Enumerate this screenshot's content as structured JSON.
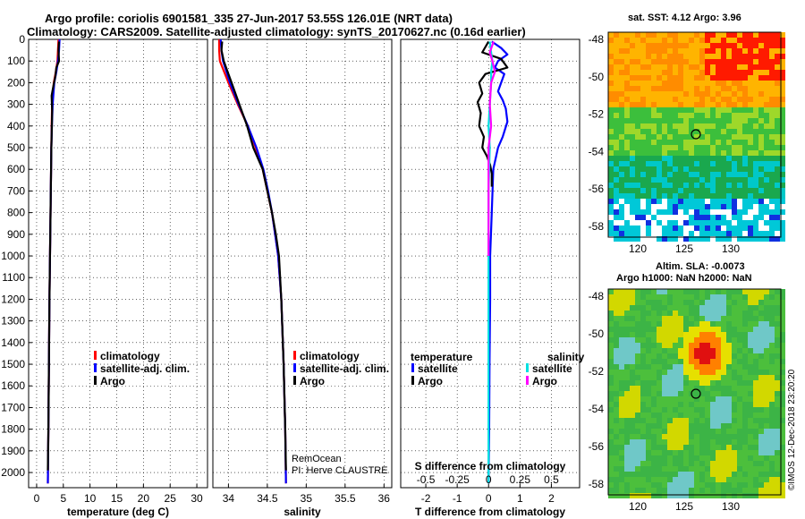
{
  "header": {
    "title_line1": "Argo profile: coriolis 6901581_335 27-Jun-2017 53.55S 126.01E (NRT data)",
    "title_line2": "Climatology: CARS2009. Satellite-adjusted climatology: synTS_20170627.nc (0.16d earlier)"
  },
  "colors": {
    "climatology": "#ff0000",
    "satellite_adj": "#0000ff",
    "argo": "#000000",
    "satellite_salinity": "#00e0e0",
    "argo_salinity": "#ff00ff"
  },
  "chart_data": [
    {
      "type": "line",
      "id": "temperature",
      "xlabel": "temperature (deg C)",
      "ylabel": "",
      "xlim": [
        -1.5,
        32
      ],
      "ylim": [
        2070,
        0
      ],
      "xticks": [
        0,
        5,
        10,
        15,
        20,
        25,
        30
      ],
      "yticks": [
        0,
        100,
        200,
        300,
        400,
        500,
        600,
        700,
        800,
        900,
        1000,
        1100,
        1200,
        1300,
        1400,
        1500,
        1600,
        1700,
        1800,
        1900,
        2000
      ],
      "legend": [
        "climatology",
        "satellite-adj. clim.",
        "Argo"
      ],
      "series": [
        {
          "name": "climatology",
          "color": "#ff0000",
          "depth": [
            0,
            50,
            100,
            150,
            200,
            300,
            400,
            500,
            600,
            800,
            1000,
            1200,
            1500,
            1800,
            2050
          ],
          "values": [
            4.1,
            4.0,
            3.9,
            3.6,
            3.2,
            2.9,
            2.8,
            2.75,
            2.7,
            2.6,
            2.5,
            2.4,
            2.3,
            2.2,
            2.1
          ]
        },
        {
          "name": "satellite-adj. clim.",
          "color": "#0000ff",
          "depth": [
            0,
            50,
            100,
            150,
            200,
            300,
            400,
            500,
            600,
            800,
            1000,
            1200,
            1500,
            1800,
            2050
          ],
          "values": [
            4.3,
            4.2,
            4.0,
            3.7,
            3.3,
            3.0,
            2.85,
            2.75,
            2.7,
            2.6,
            2.5,
            2.4,
            2.3,
            2.2,
            2.1
          ]
        },
        {
          "name": "Argo",
          "color": "#000000",
          "depth": [
            10,
            50,
            100,
            130,
            170,
            220,
            260,
            330,
            400,
            500,
            600,
            800,
            1000,
            1200,
            1500,
            1800,
            1990
          ],
          "values": [
            4.2,
            4.1,
            4.2,
            3.7,
            3.5,
            3.1,
            2.8,
            2.9,
            2.85,
            2.75,
            2.7,
            2.6,
            2.5,
            2.4,
            2.3,
            2.2,
            2.1
          ]
        }
      ]
    },
    {
      "type": "line",
      "id": "salinity",
      "xlabel": "salinity",
      "ylabel": "",
      "xlim": [
        33.8,
        36.1
      ],
      "ylim": [
        2070,
        0
      ],
      "xticks": [
        34,
        34.5,
        35,
        35.5,
        36
      ],
      "xticklabels": [
        "34",
        "34.5",
        "35",
        "35.5",
        "36"
      ],
      "legend": [
        "climatology",
        "satellite-adj. clim.",
        "Argo"
      ],
      "credit": [
        "RemOcean",
        "PI: Herve CLAUSTRE"
      ],
      "series": [
        {
          "name": "climatology",
          "color": "#ff0000",
          "depth": [
            0,
            50,
            100,
            200,
            300,
            400,
            500,
            600,
            700,
            800,
            900,
            1000,
            1200,
            1500,
            1800,
            2050
          ],
          "values": [
            33.88,
            33.88,
            33.89,
            34.0,
            34.12,
            34.25,
            34.35,
            34.44,
            34.5,
            34.56,
            34.6,
            34.64,
            34.68,
            34.71,
            34.73,
            34.74
          ]
        },
        {
          "name": "satellite-adj. clim.",
          "color": "#0000ff",
          "depth": [
            0,
            50,
            100,
            200,
            300,
            400,
            500,
            600,
            700,
            800,
            900,
            1000,
            1200,
            1500,
            1800,
            2050
          ],
          "values": [
            33.9,
            33.91,
            33.93,
            34.02,
            34.13,
            34.25,
            34.36,
            34.45,
            34.51,
            34.56,
            34.6,
            34.64,
            34.68,
            34.71,
            34.73,
            34.74
          ]
        },
        {
          "name": "Argo",
          "color": "#000000",
          "depth": [
            10,
            50,
            100,
            150,
            200,
            300,
            400,
            500,
            600,
            700,
            800,
            900,
            1000,
            1200,
            1500,
            1800,
            1990
          ],
          "values": [
            33.92,
            33.91,
            33.94,
            33.99,
            34.04,
            34.14,
            34.24,
            34.32,
            34.44,
            34.5,
            34.56,
            34.61,
            34.65,
            34.68,
            34.71,
            34.73,
            34.74
          ]
        }
      ]
    },
    {
      "type": "line",
      "id": "difference",
      "xlabel": "T difference from climatology",
      "xlabel2": "S difference from climatology",
      "xlim": [
        -2.8,
        2.9
      ],
      "ylim": [
        2070,
        0
      ],
      "xticks": [
        -2,
        -1,
        0,
        1,
        2
      ],
      "s_ticks": [
        -0.5,
        -0.25,
        0,
        0.25,
        0.5
      ],
      "s_ticklabels": [
        "-0.5",
        "-0.25",
        "0",
        "0.25",
        "0.5"
      ],
      "legend_temperature_title": "temperature",
      "legend_salinity_title": "salinity",
      "legend_temperature": [
        "satellite",
        "Argo"
      ],
      "legend_salinity": [
        "satellite",
        "Argo"
      ],
      "series": [
        {
          "name": "T satellite",
          "color": "#0000ff",
          "depth": [
            10,
            40,
            70,
            100,
            130,
            160,
            200,
            240,
            280,
            320,
            380,
            450,
            500,
            600,
            800,
            1000,
            1200,
            1500,
            1800,
            2050
          ],
          "values": [
            0.1,
            0.4,
            0.6,
            0.3,
            0.2,
            0.5,
            0.4,
            0.3,
            0.45,
            0.55,
            0.6,
            0.45,
            0.3,
            0.15,
            0.1,
            0.05,
            0.05,
            0.03,
            0.02,
            0.0
          ]
        },
        {
          "name": "T Argo",
          "color": "#000000",
          "depth": [
            10,
            60,
            90,
            130,
            160,
            200,
            250,
            290,
            340,
            400,
            450,
            500,
            540,
            580,
            620,
            680
          ],
          "values": [
            0.0,
            -0.2,
            0.4,
            0.6,
            -0.1,
            -0.3,
            -0.2,
            -0.35,
            -0.25,
            -0.3,
            -0.15,
            -0.2,
            -0.05,
            0.05,
            0.1,
            0.1
          ]
        },
        {
          "name": "S satellite",
          "color": "#00e0e0",
          "depth": [
            10,
            60,
            100,
            150,
            200,
            300,
            400,
            500,
            700,
            1000,
            1300,
            1600,
            2050
          ],
          "values": [
            0.01,
            0.02,
            0.03,
            0.02,
            0.02,
            0.01,
            0.0,
            0.01,
            0.0,
            0.0,
            0.0,
            0.0,
            0.0
          ]
        },
        {
          "name": "S Argo",
          "color": "#ff00ff",
          "depth": [
            10,
            60,
            100,
            150,
            200,
            300,
            400,
            500,
            600,
            700,
            800,
            900,
            1000
          ],
          "values": [
            0.04,
            0.01,
            0.03,
            0.05,
            0.02,
            0.01,
            0.02,
            0.0,
            0.0,
            0.0,
            0.0,
            0.0,
            0.0
          ]
        }
      ]
    }
  ],
  "maps": {
    "sst": {
      "title": "sat. SST: 4.12 Argo: 3.96",
      "yticks": [
        "-48",
        "-50",
        "-52",
        "-54",
        "-56",
        "-58"
      ],
      "xticks": [
        "120",
        "125",
        "130"
      ]
    },
    "sla": {
      "title_line1": "Altim. SLA: -0.0073",
      "title_line2": "Argo h1000: NaN h2000: NaN",
      "yticks": [
        "-48",
        "-50",
        "-52",
        "-54",
        "-56",
        "-58"
      ],
      "xticks": [
        "120",
        "125",
        "130"
      ]
    },
    "footer": "©IMOS 12-Dec-2018 23:20:20"
  }
}
